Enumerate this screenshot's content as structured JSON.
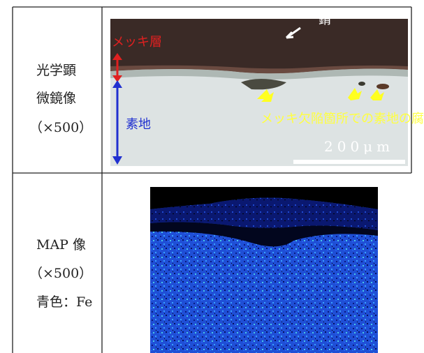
{
  "table": {
    "rows": [
      {
        "label": [
          "光学顕",
          "微鏡像",
          "（×500）"
        ],
        "image": {
          "annotations": {
            "plating_layer": "メッキ層",
            "rust": "錆",
            "base": "素地",
            "corrosion": "メッキ欠陥箇所での素地の腐食",
            "scale": "200μm"
          }
        }
      },
      {
        "label": [
          "MAP 像",
          "（×500）",
          "青色：Fe"
        ]
      }
    ]
  }
}
